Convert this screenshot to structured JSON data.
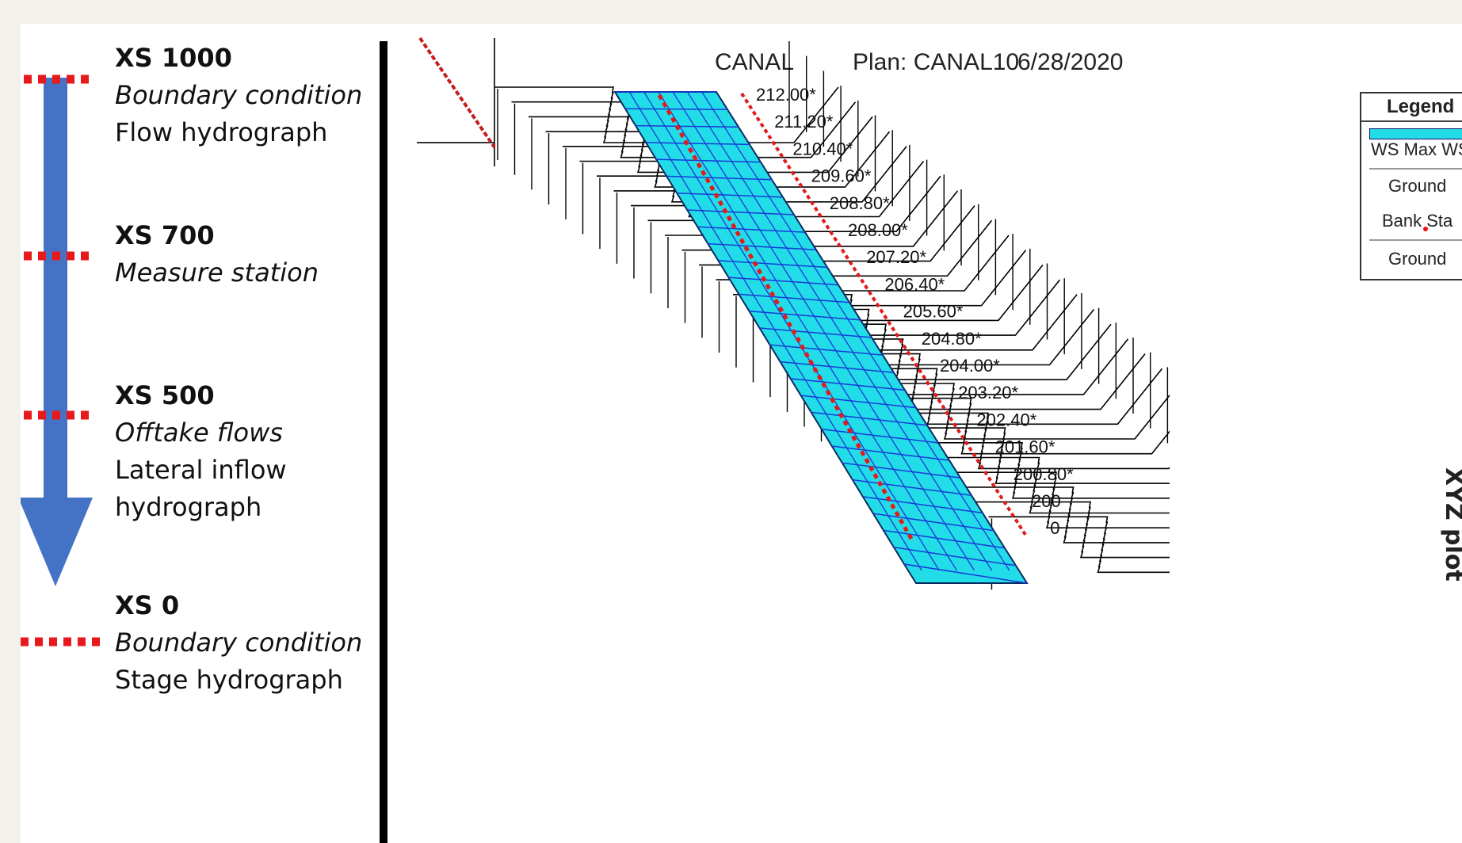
{
  "left_panel": {
    "sections": [
      {
        "title": "XS 1000",
        "lines": [
          {
            "text": "Boundary condition",
            "italic": true
          },
          {
            "text": "Flow hydrograph",
            "italic": false
          }
        ]
      },
      {
        "title": "XS 700",
        "lines": [
          {
            "text": "Measure station",
            "italic": true
          }
        ]
      },
      {
        "title": "XS 500",
        "lines": [
          {
            "text": "Offtake flows",
            "italic": true
          },
          {
            "text": "Lateral inflow",
            "italic": false
          },
          {
            "text": "hydrograph",
            "italic": false
          }
        ]
      },
      {
        "title": "XS 0",
        "lines": [
          {
            "text": "Boundary condition",
            "italic": true
          },
          {
            "text": "Stage hydrograph",
            "italic": false
          }
        ]
      }
    ],
    "arrow_color": "#4472c4",
    "marker_color": "#e8191c"
  },
  "plot": {
    "title": "CANAL",
    "plan": "Plan: CANAL10",
    "date": "6/28/2020",
    "station_labels": [
      "212.00*",
      "211.20*",
      "210.40*",
      "209.60*",
      "208.80*",
      "208.00*",
      "207.20*",
      "206.40*",
      "205.60*",
      "204.80*",
      "204.00*",
      "203.20*",
      "202.40*",
      "201.60*",
      "200.80*",
      "200",
      "0"
    ],
    "water_color": "#22dde8",
    "grid_line_color": "#1a3ad8",
    "bank_color": "#e11b1b"
  },
  "legend": {
    "title": "Legend",
    "items": [
      "WS Max WS",
      "Ground",
      "Bank Sta",
      "Ground"
    ]
  },
  "side_label": "XYZ plot"
}
